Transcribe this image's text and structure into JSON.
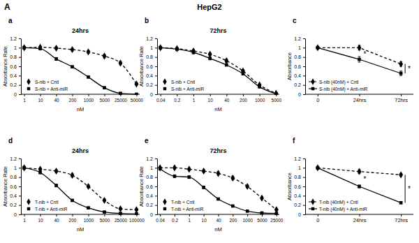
{
  "figure_label": "A",
  "figure_title": "HepG2",
  "chart_data": [
    {
      "type": "line",
      "panel": "a",
      "title": "24hrs",
      "x_label": "nM",
      "y_label": "Absorbance Rate",
      "categories": [
        "1",
        "10",
        "40",
        "200",
        "1000",
        "5000",
        "25000",
        "50000"
      ],
      "ylim": [
        0,
        1.2
      ],
      "yticks": [
        0,
        0.2,
        0.4,
        0.6,
        0.8,
        1,
        1.2
      ],
      "legend": "lower left",
      "series": [
        {
          "name": "S-nib + Cntl",
          "color": "#000000",
          "marker": "diamond",
          "line_style": "dashed",
          "values": [
            1.0,
            1.01,
            0.99,
            0.96,
            0.91,
            0.82,
            0.67,
            0.22
          ],
          "errors": [
            0.03,
            0.02,
            0.03,
            0.03,
            0.03,
            0.04,
            0.04,
            0.02
          ]
        },
        {
          "name": "S-nib + Anti-miR",
          "color": "#000000",
          "marker": "square",
          "line_style": "solid",
          "values": [
            1.0,
            0.98,
            0.76,
            0.59,
            0.37,
            0.14,
            0.02,
            0.0
          ],
          "errors": [
            0.03,
            0.02,
            0.03,
            0.02,
            0.02,
            0.02,
            0.01,
            0.01
          ]
        }
      ]
    },
    {
      "type": "line",
      "panel": "b",
      "title": "72hrs",
      "x_label": "nM",
      "y_label": "Absorbance Rate",
      "categories": [
        "0.04",
        "0.2",
        "1",
        "10",
        "40",
        "200",
        "1000",
        "5000"
      ],
      "ylim": [
        0,
        1.2
      ],
      "yticks": [
        0,
        0.2,
        0.4,
        0.6,
        0.8,
        1,
        1.2
      ],
      "legend": "lower left",
      "series": [
        {
          "name": "S-nib + Cntl",
          "color": "#000000",
          "marker": "diamond",
          "line_style": "dashed",
          "values": [
            1.0,
            0.98,
            0.93,
            0.86,
            0.72,
            0.5,
            0.2,
            0.02
          ],
          "errors": [
            0.03,
            0.03,
            0.03,
            0.03,
            0.04,
            0.03,
            0.02,
            0.01
          ]
        },
        {
          "name": "S-nib + Anti-miR",
          "color": "#000000",
          "marker": "square",
          "line_style": "solid",
          "values": [
            1.0,
            0.97,
            0.9,
            0.77,
            0.63,
            0.44,
            0.16,
            0.01
          ],
          "errors": [
            0.03,
            0.02,
            0.03,
            0.03,
            0.02,
            0.02,
            0.02,
            0.01
          ]
        }
      ]
    },
    {
      "type": "line",
      "panel": "c",
      "y_label": "Absorbance",
      "categories": [
        "0",
        "24hrs",
        "72hrs"
      ],
      "ylim": [
        0,
        1.2
      ],
      "yticks": [
        0,
        0.2,
        0.4,
        0.6,
        0.8,
        1,
        1.2
      ],
      "legend": "lower left",
      "annotations": [
        "*",
        "*"
      ],
      "series": [
        {
          "name": "S-nib (40nM) + Cntl",
          "color": "#000000",
          "marker": "diamond",
          "line_style": "dashed",
          "values": [
            1.0,
            1.0,
            0.65
          ],
          "errors": [
            0.0,
            0.05,
            0.05
          ]
        },
        {
          "name": "S-nib (40nM) + Anti-miR",
          "color": "#000000",
          "marker": "square",
          "line_style": "solid",
          "values": [
            1.0,
            0.75,
            0.45
          ],
          "errors": [
            0.0,
            0.06,
            0.05
          ]
        }
      ]
    },
    {
      "type": "line",
      "panel": "d",
      "title": "24hrs",
      "x_label": "nM",
      "y_label": "Absorbance Rate",
      "categories": [
        "1",
        "10",
        "40",
        "200",
        "1000",
        "5000",
        "25000",
        "100000"
      ],
      "ylim": [
        0,
        1.2
      ],
      "yticks": [
        0,
        0.2,
        0.4,
        0.6,
        0.8,
        1,
        1.2
      ],
      "legend": "lower left",
      "series": [
        {
          "name": "T-nib + Cntl",
          "color": "#000000",
          "marker": "diamond",
          "line_style": "dashed",
          "values": [
            1.0,
            0.97,
            0.93,
            0.84,
            0.6,
            0.3,
            0.12,
            0.1
          ],
          "errors": [
            0.03,
            0.03,
            0.03,
            0.04,
            0.03,
            0.03,
            0.02,
            0.02
          ]
        },
        {
          "name": "T-nib + Anti-miR",
          "color": "#000000",
          "marker": "square",
          "line_style": "solid",
          "values": [
            1.0,
            0.9,
            0.62,
            0.3,
            0.14,
            0.05,
            0.02,
            0.01
          ],
          "errors": [
            0.03,
            0.03,
            0.03,
            0.02,
            0.02,
            0.01,
            0.01,
            0.01
          ]
        }
      ]
    },
    {
      "type": "line",
      "panel": "e",
      "title": "72hrs",
      "x_label": "nM",
      "y_label": "Absorbance Rate",
      "categories": [
        "0.04",
        "0.2",
        "1",
        "10",
        "40",
        "200",
        "1000",
        "5000",
        "25000"
      ],
      "ylim": [
        0,
        1.2
      ],
      "yticks": [
        0,
        0.2,
        0.4,
        0.6,
        0.8,
        1,
        1.2
      ],
      "legend": "lower left",
      "series": [
        {
          "name": "T-nib + Cntl",
          "color": "#000000",
          "marker": "diamond",
          "line_style": "dashed",
          "values": [
            1.0,
            1.0,
            0.97,
            0.93,
            0.88,
            0.78,
            0.6,
            0.35,
            0.1
          ],
          "errors": [
            0.03,
            0.03,
            0.03,
            0.03,
            0.04,
            0.04,
            0.03,
            0.03,
            0.02
          ]
        },
        {
          "name": "T-nib + Anti-miR",
          "color": "#000000",
          "marker": "square",
          "line_style": "solid",
          "values": [
            0.98,
            0.82,
            0.8,
            0.58,
            0.33,
            0.18,
            0.07,
            0.03,
            0.02
          ],
          "errors": [
            0.03,
            0.03,
            0.03,
            0.03,
            0.02,
            0.02,
            0.01,
            0.01,
            0.01
          ]
        }
      ]
    },
    {
      "type": "line",
      "panel": "f",
      "y_label": "Absorbance",
      "categories": [
        "0",
        "24hrs",
        "72hrs"
      ],
      "ylim": [
        0,
        1.2
      ],
      "yticks": [
        0,
        0.2,
        0.4,
        0.6,
        0.8,
        1,
        1.2
      ],
      "legend": "lower left",
      "annotations": [
        "*",
        "*"
      ],
      "series": [
        {
          "name": "T-nib (40nM) + Cntl",
          "color": "#000000",
          "marker": "diamond",
          "line_style": "dashed",
          "values": [
            1.0,
            0.92,
            0.85
          ],
          "errors": [
            0.0,
            0.04,
            0.03
          ]
        },
        {
          "name": "T-nib (40nM) + Anti-miR",
          "color": "#000000",
          "marker": "square",
          "line_style": "solid",
          "values": [
            1.0,
            0.6,
            0.25
          ],
          "errors": [
            0.0,
            0.03,
            0.02
          ]
        }
      ]
    }
  ]
}
